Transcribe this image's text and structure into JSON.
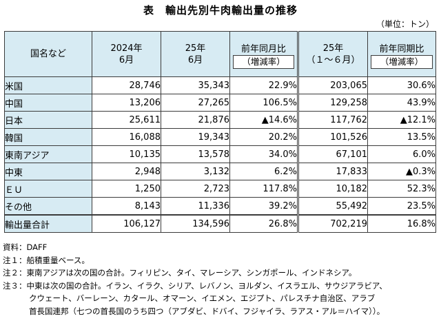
{
  "title": "表　輸出先別牛肉輸出量の推移",
  "unit": "（単位：トン）",
  "columns": {
    "name": "国名など",
    "col1_line1": "2024年",
    "col1_line2": "6月",
    "col2_line1": "25年",
    "col2_line2": "6月",
    "col3_line1": "前年同月比",
    "col3_line2": "（増減率）",
    "col4_line1": "25年",
    "col4_line2": "（１～６月）",
    "col5_line1": "前年同期比",
    "col5_line2": "（増減率）"
  },
  "rows": [
    {
      "name": "米国",
      "v1": "28,746",
      "v2": "35,343",
      "v3": "22.9%",
      "v4": "203,065",
      "v5": "30.6%"
    },
    {
      "name": "中国",
      "v1": "13,206",
      "v2": "27,265",
      "v3": "106.5%",
      "v4": "129,258",
      "v5": "43.9%"
    },
    {
      "name": "日本",
      "v1": "25,611",
      "v2": "21,876",
      "v3": "▲14.6%",
      "v4": "117,762",
      "v5": "▲12.1%"
    },
    {
      "name": "韓国",
      "v1": "16,088",
      "v2": "19,343",
      "v3": "20.2%",
      "v4": "101,526",
      "v5": "13.5%"
    },
    {
      "name": "東南アジア",
      "v1": "10,135",
      "v2": "13,578",
      "v3": "34.0%",
      "v4": "67,101",
      "v5": "6.0%"
    },
    {
      "name": "中東",
      "v1": "2,948",
      "v2": "3,132",
      "v3": "6.2%",
      "v4": "17,833",
      "v5": "▲0.3%"
    },
    {
      "name": "ＥＵ",
      "v1": "1,250",
      "v2": "2,723",
      "v3": "117.8%",
      "v4": "10,182",
      "v5": "52.3%"
    },
    {
      "name": "その他",
      "v1": "8,143",
      "v2": "11,336",
      "v3": "39.2%",
      "v4": "55,492",
      "v5": "23.5%"
    },
    {
      "name": "輸出量合計",
      "v1": "106,127",
      "v2": "134,596",
      "v3": "26.8%",
      "v4": "702,219",
      "v5": "16.8%"
    }
  ],
  "notes": {
    "source": "資料：DAFF",
    "note1": "注１：船積重量ベース。",
    "note2": "注２：東南アジアは次の国の合計。フィリピン、タイ、マレーシア、シンガポール、インドネシア。",
    "note3_line1": "注３：中東は次の国の合計。イラン、イラク、シリア、レバノン、ヨルダン、イスラエル、サウジアラビア、",
    "note3_line2": "クウェート、バーレーン、カタール、オマーン、イエメン、エジプト、パレスチナ自治区、アラブ",
    "note3_line3": "首長国連邦（七つの首長国のうち四つ（アブダビ、ドバイ、フジャイラ、ラアス・アル＝ハイマ））。"
  }
}
